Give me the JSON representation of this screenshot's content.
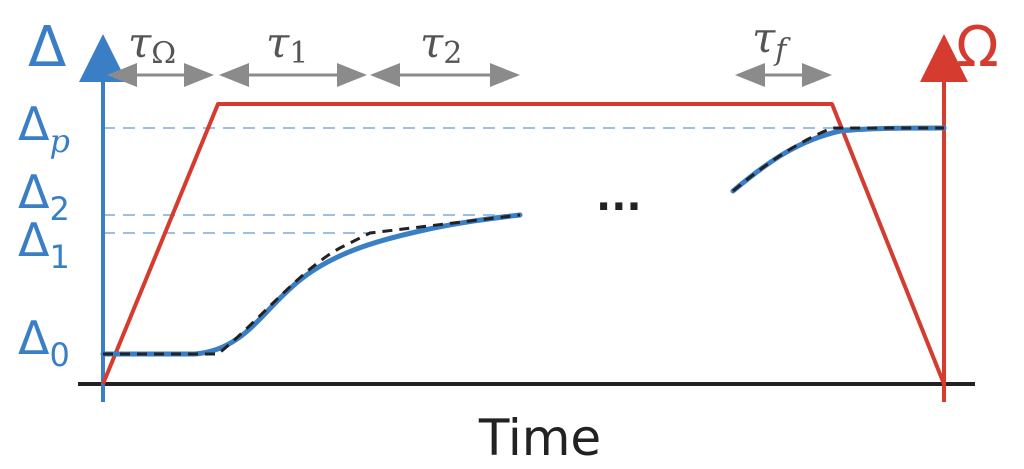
{
  "colors": {
    "blue_axis": "#3a7fc5",
    "red_axis": "#d63b2f",
    "blue_curve": "#3a7fc5",
    "dashed_reference": "#9bbfe6",
    "dashed_curve": "#222222",
    "interval_arrows": "#8b8b8b",
    "time_axis": "#222222"
  },
  "labels": {
    "left_axis_symbol": "Δ",
    "right_axis_symbol": "Ω",
    "time_label": "Time",
    "ellipsis": "···",
    "delta_levels": [
      {
        "base": "Δ",
        "sub": "p"
      },
      {
        "base": "Δ",
        "sub": "2"
      },
      {
        "base": "Δ",
        "sub": "1"
      },
      {
        "base": "Δ",
        "sub": "0"
      }
    ],
    "intervals": [
      {
        "base": "τ",
        "sub": "Ω"
      },
      {
        "base": "τ",
        "sub": "1"
      },
      {
        "base": "τ",
        "sub": "2"
      },
      {
        "base": "τ",
        "sub": "f"
      }
    ]
  },
  "icons": {
    "left_axis_arrow": "arrow-up-icon",
    "right_axis_arrow": "arrow-up-icon",
    "interval_arrows": "double-arrow-icon"
  }
}
